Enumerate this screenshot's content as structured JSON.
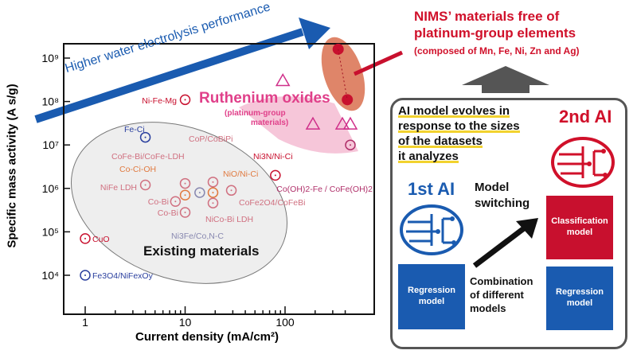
{
  "chart_data": {
    "type": "scatter",
    "xlabel": "Current density (mA/cm²)",
    "ylabel": "Specific mass activity (A s/g)",
    "xscale": "log",
    "yscale": "log",
    "xlim": [
      0.6,
      450
    ],
    "ylim": [
      4000,
      4000000000.0
    ],
    "xticks": [
      "1",
      "10",
      "100"
    ],
    "yticks": [
      "10⁴",
      "10⁵",
      "10⁶",
      "10⁷",
      "10⁸",
      "10⁹"
    ],
    "grid": false,
    "series": [
      {
        "name": "Existing materials",
        "marker": "circle",
        "points": [
          {
            "label": "Ni-Fe-Mg",
            "x": 10,
            "y": 110000000.0,
            "color": "#c8102e"
          },
          {
            "label": "Fe-Ci",
            "x": 4,
            "y": 15000000.0,
            "color": "#2a3f9e"
          },
          {
            "label": "NiFe LDH",
            "x": 4,
            "y": 1200000.0,
            "color": "#d07080"
          },
          {
            "label": "CoFe-Bi/CoFe-LDH",
            "x": 10,
            "y": 1300000.0,
            "color": "#d07080"
          },
          {
            "label": "Co-Ci-OH",
            "x": 10,
            "y": 700000.0,
            "color": "#e07a40"
          },
          {
            "label": "Co-Bi",
            "x": 8,
            "y": 500000.0,
            "color": "#d07080"
          },
          {
            "label": "Co-Bi",
            "x": 10,
            "y": 280000.0,
            "color": "#d07080"
          },
          {
            "label": "Ni3Fe/Co,N-C",
            "x": 14,
            "y": 800000.0,
            "color": "#8888b0"
          },
          {
            "label": "CoP/CoBiPi",
            "x": 19,
            "y": 1400000.0,
            "color": "#d07080"
          },
          {
            "label": "NiO/Ni-Ci",
            "x": 19,
            "y": 800000.0,
            "color": "#e07a40"
          },
          {
            "label": "NiCo-Bi LDH",
            "x": 19,
            "y": 460000.0,
            "color": "#d07080"
          },
          {
            "label": "CoFe2O4/CoFeBi",
            "x": 29,
            "y": 900000.0,
            "color": "#d07080"
          },
          {
            "label": "Ni3N/Ni-Ci",
            "x": 80,
            "y": 2000000.0,
            "color": "#c8102e"
          },
          {
            "label": "CuO",
            "x": 1,
            "y": 70000.0,
            "color": "#c8102e"
          },
          {
            "label": "Fe3O4/NiFexOy",
            "x": 1,
            "y": 10000.0,
            "color": "#2a3f9e"
          },
          {
            "label": "Co(OH)2-Fe / CoFe(OH)2",
            "x": 450,
            "y": 10000000.0,
            "color": "#b0306a"
          }
        ]
      },
      {
        "name": "Ruthenium oxides",
        "marker": "triangle",
        "points": [
          {
            "x": 95,
            "y": 300000000.0
          },
          {
            "x": 190,
            "y": 30000000.0
          },
          {
            "x": 375,
            "y": 30000000.0
          },
          {
            "x": 450,
            "y": 30000000.0
          }
        ]
      },
      {
        "name": "NIMS' materials",
        "marker": "filled-circle",
        "points": [
          {
            "x": 340,
            "y": 1600000000.0
          },
          {
            "x": 420,
            "y": 110000000.0
          }
        ]
      }
    ],
    "annotations": {
      "arrow": "Higher water electrolysis performance",
      "ruthenium": "Ruthenium oxides",
      "ruthenium_sub1": "(platinum-group",
      "ruthenium_sub2": "materials)",
      "existing": "Existing materials"
    }
  },
  "nims": {
    "line1": "NIMS’ materials free of",
    "line2": "platinum-group elements",
    "line3": "(composed of Mn, Fe, Ni, Zn and Ag)"
  },
  "panel": {
    "desc": [
      "AI model evolves in",
      "response to the sizes",
      "of the datasets",
      "it analyzes"
    ],
    "first_ai": "1st AI",
    "second_ai": "2nd AI",
    "switching": [
      "Model",
      "switching"
    ],
    "combination": [
      "Combination",
      "of different",
      "models"
    ],
    "regression": [
      "Regression",
      "model"
    ],
    "classification": [
      "Classification",
      "model"
    ]
  },
  "colors": {
    "blue": "#1a5bb0",
    "red": "#c8102e",
    "pink": "#e0408a",
    "gray": "#555555"
  }
}
